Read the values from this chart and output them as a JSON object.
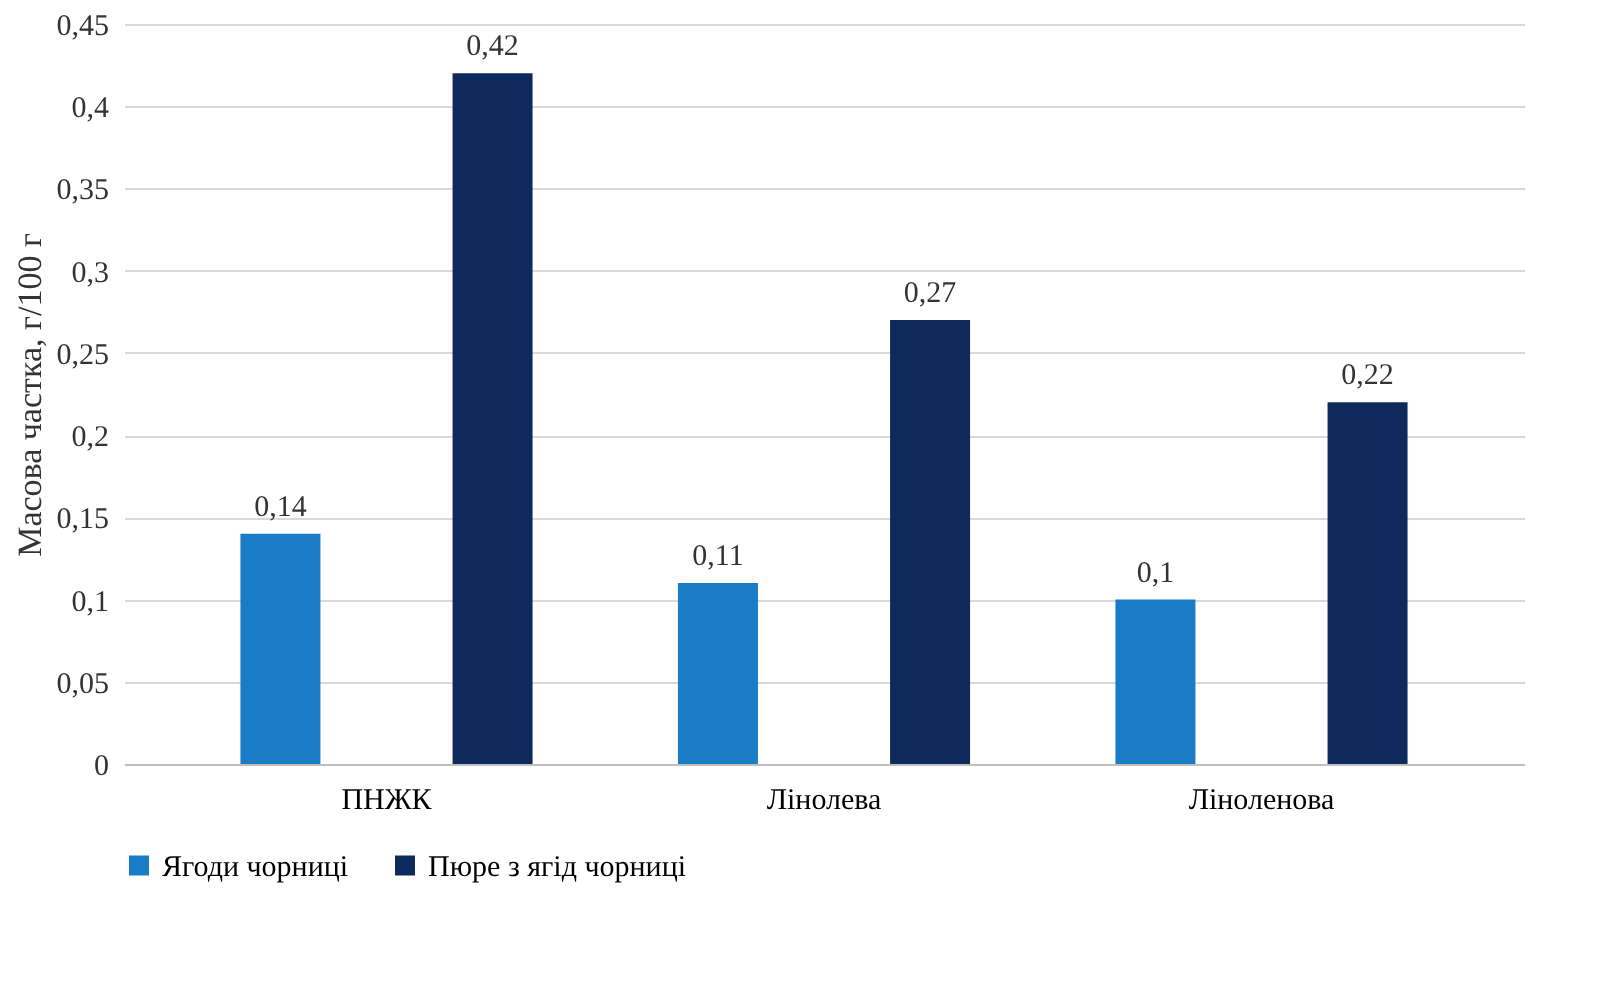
{
  "chart_data": {
    "type": "bar",
    "ylabel": "Масова частка, г/100 г",
    "categories": [
      "ПНЖК",
      "Лінолева",
      "Ліноленова"
    ],
    "series": [
      {
        "name": "Ягоди чорниці",
        "color": "#1a7cc7",
        "values": [
          0.14,
          0.11,
          0.1
        ],
        "value_labels": [
          "0,14",
          "0,11",
          "0,1"
        ]
      },
      {
        "name": "Пюре з ягід чорниці",
        "color": "#0e2a5c",
        "values": [
          0.42,
          0.27,
          0.22
        ],
        "value_labels": [
          "0,42",
          "0,27",
          "0,22"
        ]
      }
    ],
    "ylim": [
      0,
      0.45
    ],
    "yticks": [
      0,
      {
        "value": 0.05,
        "label": "0,05"
      },
      {
        "value": 0.1,
        "label": "0,1"
      },
      {
        "value": 0.15,
        "label": "0,15"
      },
      {
        "value": 0.2,
        "label": "0,2"
      },
      {
        "value": 0.25,
        "label": "0,25"
      },
      {
        "value": 0.3,
        "label": "0,3"
      },
      {
        "value": 0.35,
        "label": "0,35"
      },
      {
        "value": 0.4,
        "label": "0,4"
      },
      {
        "value": 0.45,
        "label": "0,45"
      }
    ],
    "grid": "y",
    "legend": "bottom"
  }
}
